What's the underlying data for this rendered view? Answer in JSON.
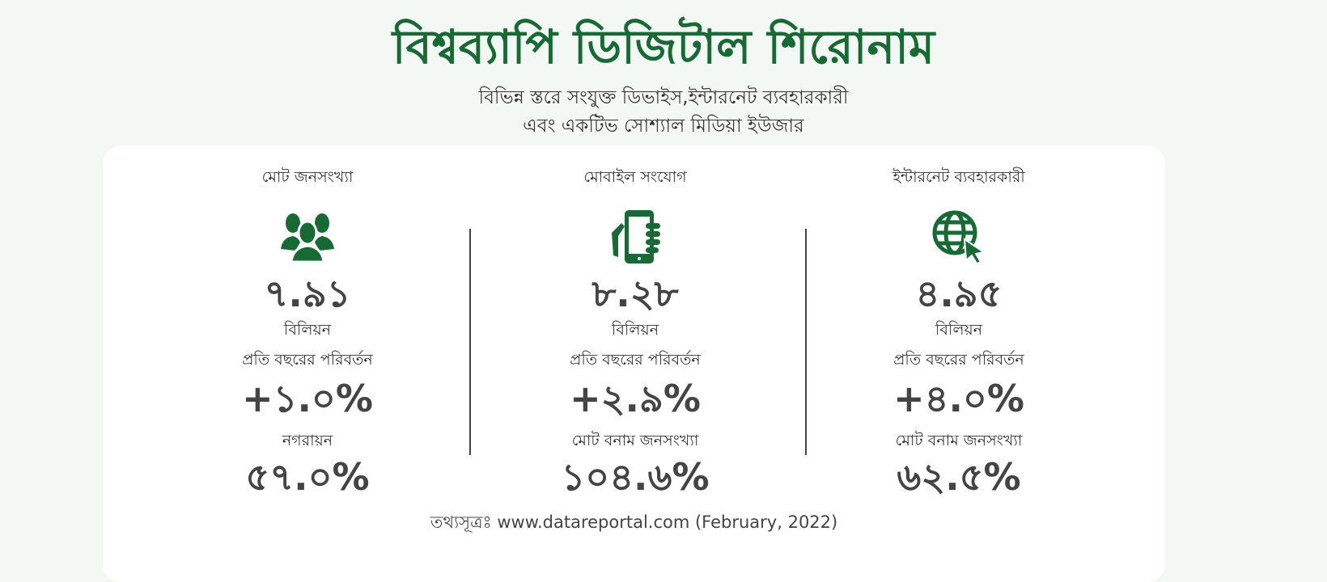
{
  "header": {
    "title": "বিশ্বব্যাপি ডিজিটাল শিরোনাম",
    "subtitle_line1": "বিভিন্ন স্তরে সংযুক্ত ডিভাইস,ইন্টারনেট ব্যবহারকারী",
    "subtitle_line2": "এবং একটিভ সোশ্যাল মিডিয়া ইউজার"
  },
  "colors": {
    "accent": "#186a35",
    "text": "#333333",
    "background": "#f3f8f5",
    "card": "#ffffff"
  },
  "columns": [
    {
      "label": "মোট জনসংখ্যা",
      "icon": "people-group-icon",
      "value": "৭.৯১",
      "unit": "বিলিয়ন",
      "change_label": "প্রতি বছরের পরিবর্তন",
      "change": "+১.০%",
      "extra_label": "নগরায়ন",
      "extra_value": "৫৭.০%"
    },
    {
      "label": "মোবাইল সংযোগ",
      "icon": "mobile-phone-hand-icon",
      "value": "৮.২৮",
      "unit": "বিলিয়ন",
      "change_label": "প্রতি বছরের পরিবর্তন",
      "change": "+২.৯%",
      "extra_label": "মোট বনাম জনসংখ্যা",
      "extra_value": "১০৪.৬%"
    },
    {
      "label": "ইন্টারনেট ব্যবহারকারী",
      "icon": "globe-cursor-icon",
      "value": "৪.৯৫",
      "unit": "বিলিয়ন",
      "change_label": "প্রতি বছরের পরিবর্তন",
      "change": "+৪.০%",
      "extra_label": "মোট বনাম জনসংখ্যা",
      "extra_value": "৬২.৫%"
    }
  ],
  "source": "তথ্যসূত্রঃ www.datareportal.com (February, 2022)"
}
